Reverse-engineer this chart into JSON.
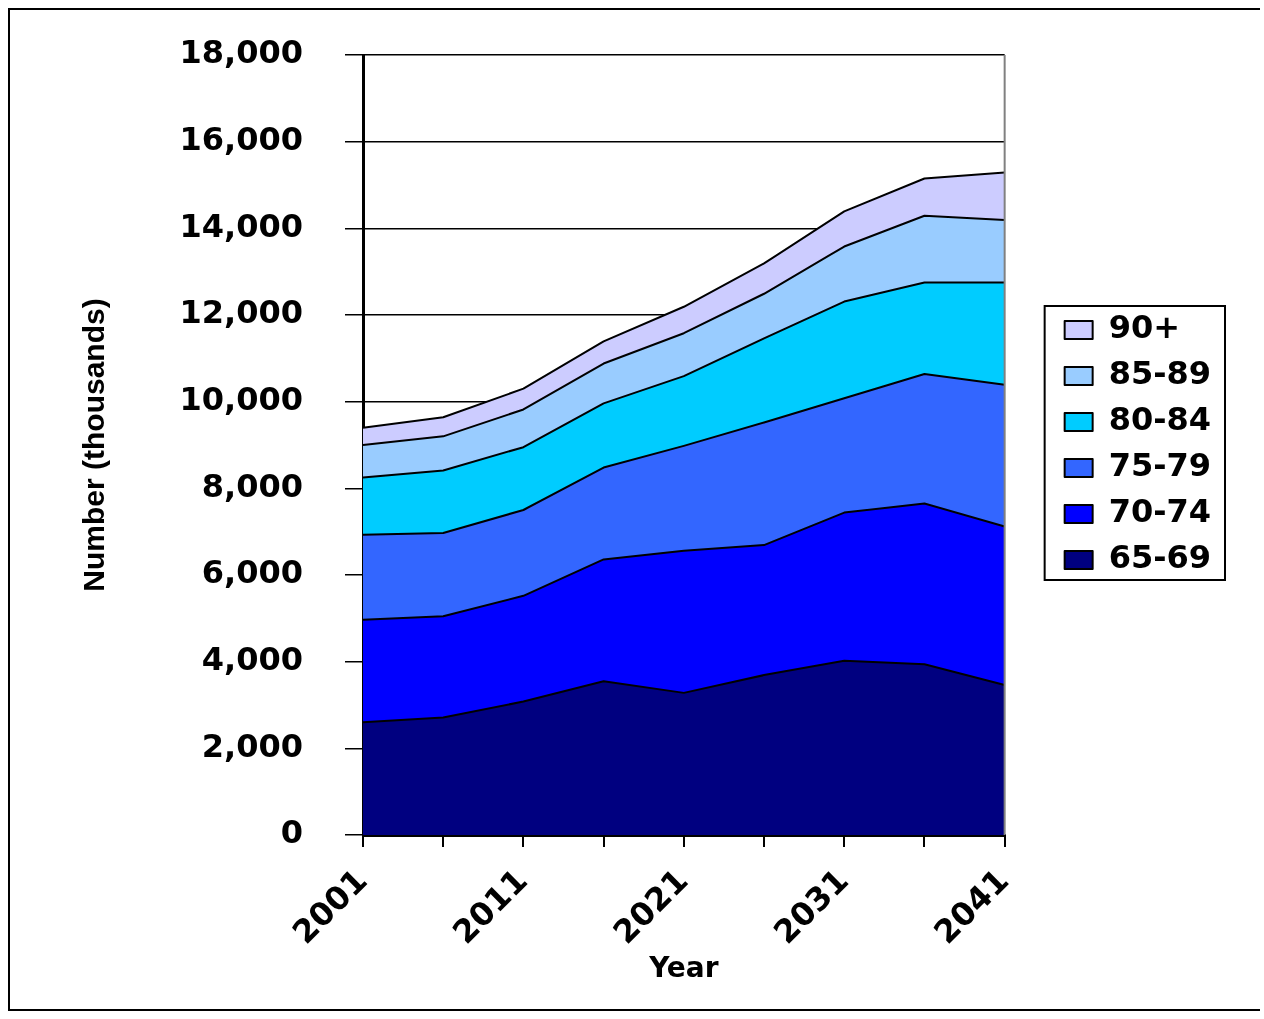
{
  "chart_data": {
    "type": "area",
    "xlabel": "Year",
    "ylabel": "Number (thousands)",
    "categories": [
      "2001",
      null,
      "2011",
      null,
      "2021",
      null,
      "2031",
      null,
      "2041"
    ],
    "series": [
      {
        "name": "65-69",
        "color": "#000080",
        "values": [
          2600,
          2710,
          3080,
          3550,
          3280,
          3690,
          4020,
          3940,
          3460
        ]
      },
      {
        "name": "70-74",
        "color": "#0000ff",
        "values": [
          2370,
          2340,
          2440,
          2810,
          3280,
          3000,
          3420,
          3710,
          3660
        ]
      },
      {
        "name": "75-79",
        "color": "#3366ff",
        "values": [
          1960,
          1920,
          1980,
          2120,
          2420,
          2830,
          2640,
          2990,
          3270
        ]
      },
      {
        "name": "80-84",
        "color": "#00ccff",
        "values": [
          1320,
          1440,
          1450,
          1480,
          1610,
          1940,
          2230,
          2110,
          2360
        ]
      },
      {
        "name": "85-89",
        "color": "#99ccff",
        "values": [
          750,
          790,
          870,
          920,
          990,
          1030,
          1270,
          1540,
          1440
        ]
      },
      {
        "name": "90+",
        "color": "#ccccff",
        "values": [
          400,
          440,
          480,
          510,
          610,
          700,
          810,
          860,
          1100
        ]
      }
    ],
    "stacked": true,
    "ylim": [
      0,
      18000
    ],
    "yticks": [
      0,
      {
        "value": 2000,
        "label": "2,000"
      },
      {
        "value": 4000,
        "label": "4,000"
      },
      {
        "value": 6000,
        "label": "6,000"
      },
      {
        "value": 8000,
        "label": "8,000"
      },
      {
        "value": 10000,
        "label": "10,000"
      },
      {
        "value": 12000,
        "label": "12,000"
      },
      {
        "value": 14000,
        "label": "14,000"
      },
      {
        "value": 16000,
        "label": "16,000"
      },
      {
        "value": 18000,
        "label": "18,000"
      }
    ],
    "grid": "y",
    "legend": "right"
  }
}
